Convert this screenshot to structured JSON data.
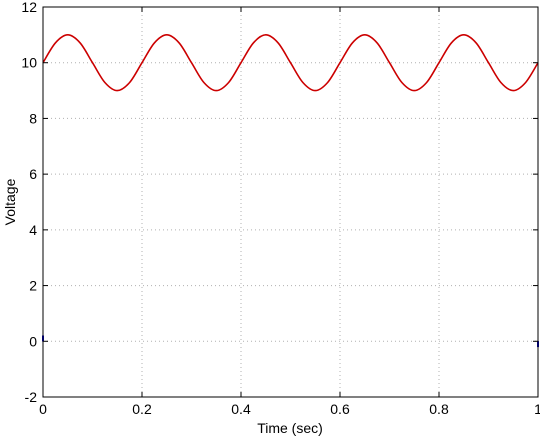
{
  "chart_data": {
    "type": "line",
    "title": "",
    "xlabel": "Time (sec)",
    "ylabel": "Voltage",
    "xlim": [
      0,
      1
    ],
    "ylim": [
      -2,
      12
    ],
    "x_ticks": [
      0,
      0.2,
      0.4,
      0.6,
      0.8,
      1
    ],
    "x_tick_labels": [
      "0",
      "0.2",
      "0.4",
      "0.6",
      "0.8",
      "1"
    ],
    "y_ticks": [
      -2,
      0,
      2,
      4,
      6,
      8,
      10,
      12
    ],
    "y_tick_labels": [
      "-2",
      "0",
      "2",
      "4",
      "6",
      "8",
      "10",
      "12"
    ],
    "grid": true,
    "grid_style": "dotted",
    "legend": "none",
    "series": [
      {
        "color": "#cc0000",
        "x": [
          0,
          0.025,
          0.05,
          0.075,
          0.1,
          0.125,
          0.15,
          0.175,
          0.2,
          0.225,
          0.25,
          0.275,
          0.3,
          0.325,
          0.35,
          0.375,
          0.4,
          0.425,
          0.45,
          0.475,
          0.5,
          0.525,
          0.55,
          0.575,
          0.6,
          0.625,
          0.65,
          0.675,
          0.7,
          0.725,
          0.75,
          0.775,
          0.8,
          0.825,
          0.85,
          0.875,
          0.9,
          0.925,
          0.95,
          0.975,
          1
        ],
        "y": [
          10,
          10.71,
          11,
          10.71,
          10,
          9.29,
          9,
          9.29,
          10,
          10.71,
          11,
          10.71,
          10,
          9.29,
          9,
          9.29,
          10,
          10.71,
          11,
          10.71,
          10,
          9.29,
          9,
          9.29,
          10,
          10.71,
          11,
          10.71,
          10,
          9.29,
          9,
          9.29,
          10,
          10.71,
          11,
          10.71,
          10,
          9.29,
          9,
          9.29,
          10
        ]
      },
      {
        "color": "#0000cc",
        "x": [
          0,
          1
        ],
        "y": [
          0.1,
          -0.1
        ]
      }
    ]
  }
}
